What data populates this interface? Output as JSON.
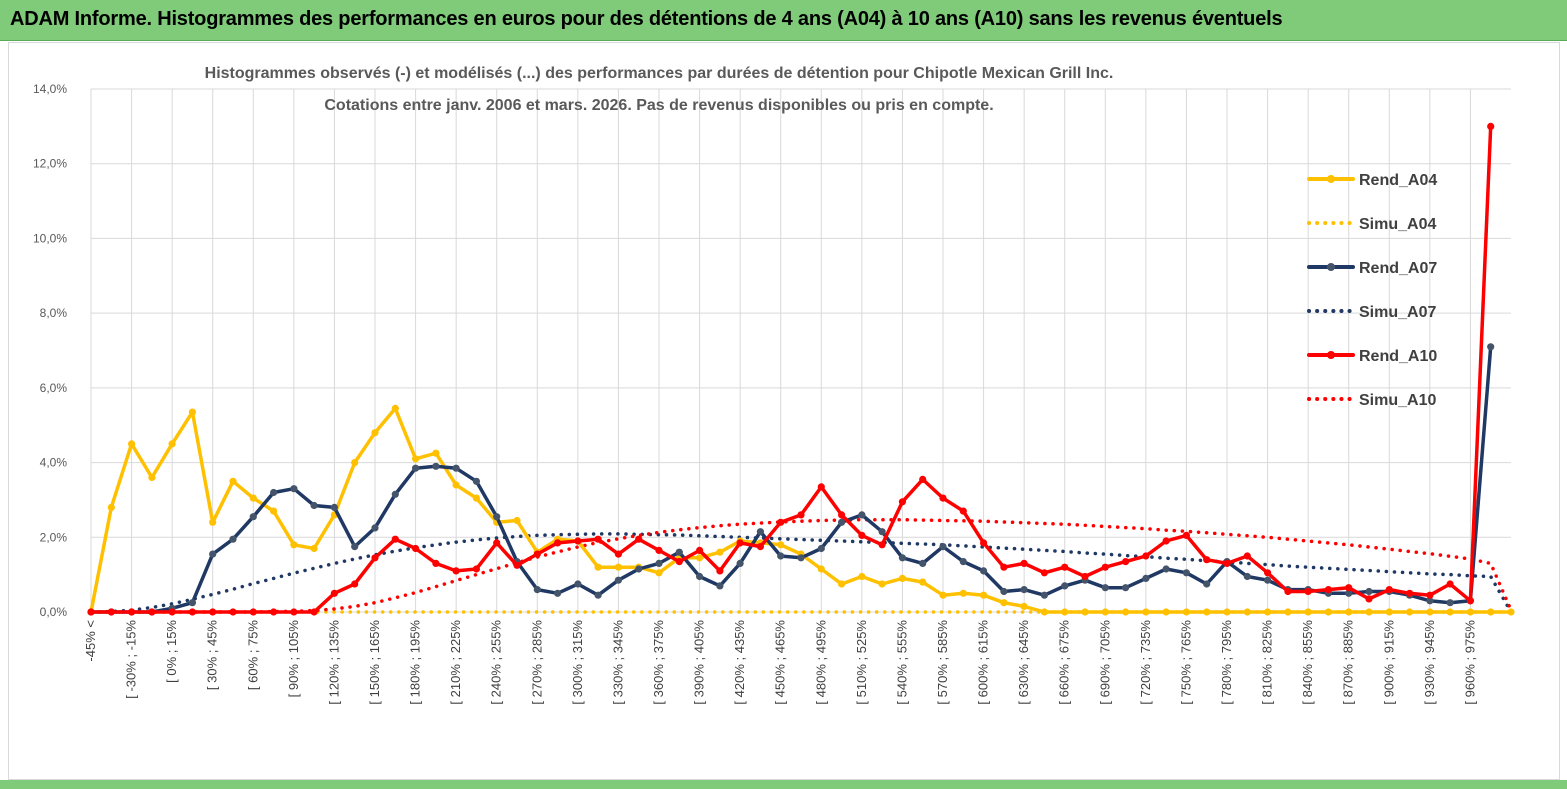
{
  "banner": {
    "title": "ADAM Informe. Histogrammes des performances en euros pour des détentions de 4 ans (A04) à 10 ans (A10) sans les revenus éventuels"
  },
  "colors": {
    "A04": "#ffc000",
    "A07": "#1f3864",
    "A10": "#ff0000",
    "banner": "#7fcb7a",
    "grid": "#d9d9d9"
  },
  "chart_data": {
    "type": "line",
    "title": "Histogrammes observés (-) et modélisés (...) des performances par durées de détention pour Chipotle Mexican Grill Inc.",
    "subtitle": "Cotations entre janv. 2006 et mars. 2026. Pas de revenus disponibles ou pris en compte.",
    "xlabel": "",
    "ylabel": "",
    "ylim": [
      0,
      14
    ],
    "yticks": [
      0,
      2,
      4,
      6,
      8,
      10,
      12,
      14
    ],
    "ytick_labels": [
      "0,0%",
      "2,0%",
      "4,0%",
      "6,0%",
      "8,0%",
      "10,0%",
      "12,0%",
      "14,0%"
    ],
    "grid": true,
    "legend_position": "right",
    "x_tick_labels": [
      "-45% <",
      "[ -30% ; -15%",
      "[ 0% ; 15%",
      "[ 30% ; 45%",
      "[ 60% ; 75%",
      "[ 90% ; 105%",
      "[ 120% ; 135%",
      "[ 150% ; 165%",
      "[ 180% ; 195%",
      "[ 210% ; 225%",
      "[ 240% ; 255%",
      "[ 270% ; 285%",
      "[ 300% ; 315%",
      "[ 330% ; 345%",
      "[ 360% ; 375%",
      "[ 390% ; 405%",
      "[ 420% ; 435%",
      "[ 450% ; 465%",
      "[ 480% ; 495%",
      "[ 510% ; 525%",
      "[ 540% ; 555%",
      "[ 570% ; 585%",
      "[ 600% ; 615%",
      "[ 630% ; 645%",
      "[ 660% ; 675%",
      "[ 690% ; 705%",
      "[ 720% ; 735%",
      "[ 750% ; 765%",
      "[ 780% ; 795%",
      "[ 810% ; 825%",
      "[ 840% ; 855%",
      "[ 870% ; 885%",
      "[ 900% ; 915%",
      "[ 930% ; 945%",
      "[ 960% ; 975%"
    ],
    "series": [
      {
        "name": "Rend_A04",
        "style": "solid",
        "color": "#ffc000",
        "values": [
          0,
          2.8,
          4.5,
          3.6,
          4.5,
          5.35,
          2.4,
          3.5,
          3.05,
          2.7,
          1.8,
          1.7,
          2.6,
          4.0,
          4.8,
          5.45,
          4.1,
          4.25,
          3.4,
          3.05,
          2.4,
          2.45,
          1.6,
          1.95,
          1.9,
          1.2,
          1.2,
          1.2,
          1.05,
          1.45,
          1.45,
          1.6,
          1.9,
          1.85,
          1.8,
          1.55,
          1.15,
          0.75,
          0.95,
          0.75,
          0.9,
          0.8,
          0.45,
          0.5,
          0.45,
          0.25,
          0.15,
          0,
          0,
          0,
          0,
          0,
          0,
          0,
          0,
          0,
          0,
          0,
          0,
          0,
          0,
          0,
          0,
          0,
          0,
          0,
          0,
          0,
          0,
          0,
          0
        ]
      },
      {
        "name": "Simu_A04",
        "style": "dotted",
        "color": "#ffc000",
        "values": [
          0,
          0,
          0,
          0,
          0,
          0,
          0,
          0,
          0,
          0,
          0,
          0,
          0,
          0,
          0,
          0,
          0,
          0,
          0,
          0,
          0,
          0,
          0,
          0,
          0,
          0,
          0,
          0,
          0,
          0,
          0,
          0,
          0,
          0,
          0,
          0,
          0,
          0,
          0,
          0,
          0,
          0,
          0,
          0,
          0,
          0,
          0,
          0,
          0,
          0,
          0,
          0,
          0,
          0,
          0,
          0,
          0,
          0,
          0,
          0,
          0,
          0,
          0,
          0,
          0,
          0,
          0,
          0,
          0,
          0,
          0
        ]
      },
      {
        "name": "Rend_A07",
        "style": "solid",
        "color": "#1f3864",
        "values": [
          0,
          0,
          0,
          0,
          0.1,
          0.25,
          1.55,
          1.95,
          2.55,
          3.2,
          3.3,
          2.85,
          2.8,
          1.75,
          2.25,
          3.15,
          3.85,
          3.9,
          3.85,
          3.5,
          2.55,
          1.35,
          0.6,
          0.5,
          0.75,
          0.45,
          0.85,
          1.15,
          1.3,
          1.6,
          0.95,
          0.7,
          1.3,
          2.15,
          1.5,
          1.45,
          1.7,
          2.4,
          2.6,
          2.15,
          1.45,
          1.3,
          1.75,
          1.35,
          1.1,
          0.55,
          0.6,
          0.45,
          0.7,
          0.85,
          0.65,
          0.65,
          0.9,
          1.15,
          1.05,
          0.75,
          1.35,
          0.95,
          0.85,
          0.6,
          0.6,
          0.5,
          0.5,
          0.55,
          0.55,
          0.45,
          0.3,
          0.25,
          0.3,
          7.1
        ]
      },
      {
        "name": "Simu_A07",
        "style": "dotted",
        "color": "#1f3864",
        "values": [
          0,
          0.01,
          0.05,
          0.12,
          0.22,
          0.34,
          0.47,
          0.61,
          0.76,
          0.9,
          1.04,
          1.17,
          1.3,
          1.42,
          1.53,
          1.63,
          1.72,
          1.8,
          1.87,
          1.93,
          1.98,
          2.02,
          2.05,
          2.07,
          2.08,
          2.09,
          2.09,
          2.08,
          2.07,
          2.06,
          2.04,
          2.02,
          2.0,
          1.98,
          1.96,
          1.94,
          1.92,
          1.9,
          1.88,
          1.86,
          1.84,
          1.82,
          1.8,
          1.77,
          1.74,
          1.71,
          1.68,
          1.65,
          1.62,
          1.58,
          1.55,
          1.51,
          1.48,
          1.44,
          1.41,
          1.37,
          1.34,
          1.3,
          1.27,
          1.23,
          1.2,
          1.17,
          1.14,
          1.11,
          1.08,
          1.05,
          1.02,
          1.0,
          0.97,
          0.95,
          0
        ]
      },
      {
        "name": "Rend_A10",
        "style": "solid",
        "color": "#ff0000",
        "values": [
          0,
          0,
          0,
          0,
          0,
          0,
          0,
          0,
          0,
          0,
          0,
          0,
          0.5,
          0.75,
          1.45,
          1.95,
          1.7,
          1.3,
          1.1,
          1.15,
          1.85,
          1.25,
          1.55,
          1.85,
          1.9,
          1.95,
          1.55,
          1.95,
          1.65,
          1.35,
          1.65,
          1.1,
          1.85,
          1.75,
          2.4,
          2.6,
          3.35,
          2.6,
          2.05,
          1.8,
          2.95,
          3.55,
          3.05,
          2.7,
          1.85,
          1.2,
          1.3,
          1.05,
          1.2,
          0.95,
          1.2,
          1.35,
          1.5,
          1.9,
          2.05,
          1.4,
          1.3,
          1.5,
          1.05,
          0.55,
          0.55,
          0.6,
          0.65,
          0.35,
          0.6,
          0.5,
          0.45,
          0.75,
          0.3,
          13.0
        ]
      },
      {
        "name": "Simu_A10",
        "style": "dotted",
        "color": "#ff0000",
        "values": [
          0,
          0,
          0,
          0,
          0,
          0,
          0,
          0,
          0,
          0.01,
          0.02,
          0.04,
          0.08,
          0.15,
          0.25,
          0.38,
          0.52,
          0.68,
          0.84,
          1.0,
          1.16,
          1.32,
          1.47,
          1.61,
          1.74,
          1.86,
          1.96,
          2.05,
          2.13,
          2.2,
          2.26,
          2.31,
          2.35,
          2.38,
          2.41,
          2.43,
          2.45,
          2.46,
          2.47,
          2.47,
          2.47,
          2.46,
          2.45,
          2.44,
          2.43,
          2.41,
          2.39,
          2.37,
          2.35,
          2.32,
          2.29,
          2.26,
          2.23,
          2.19,
          2.16,
          2.12,
          2.08,
          2.04,
          2.0,
          1.95,
          1.9,
          1.85,
          1.8,
          1.74,
          1.68,
          1.62,
          1.56,
          1.49,
          1.42,
          1.3,
          0.05
        ]
      }
    ]
  }
}
